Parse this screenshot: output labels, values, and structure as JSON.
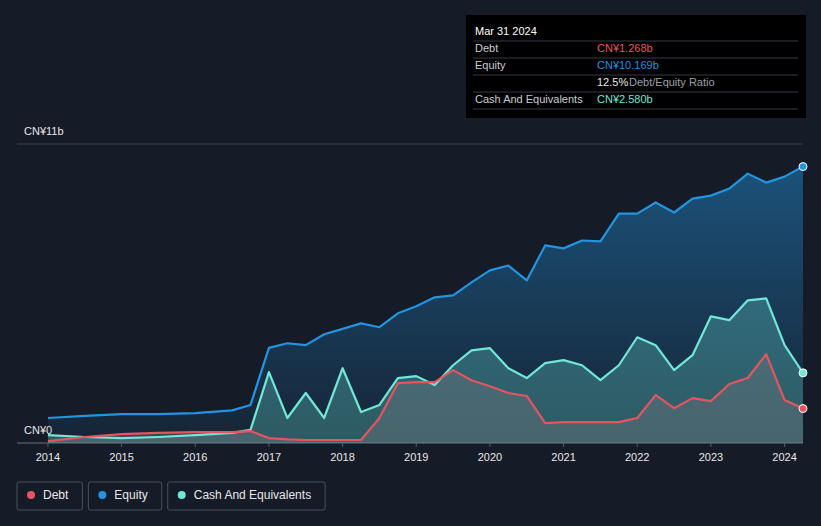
{
  "chart_data": {
    "type": "line",
    "x": [
      2014,
      2014.5,
      2015,
      2015.5,
      2016,
      2016.5,
      2016.75,
      2017,
      2017.25,
      2017.5,
      2017.75,
      2018,
      2018.25,
      2018.5,
      2018.75,
      2019,
      2019.25,
      2019.5,
      2019.75,
      2020,
      2020.25,
      2020.5,
      2020.75,
      2021,
      2021.25,
      2021.5,
      2021.75,
      2022,
      2022.25,
      2022.5,
      2022.75,
      2023,
      2023.25,
      2023.5,
      2023.75,
      2024,
      2024.25
    ],
    "series": [
      {
        "name": "Debt",
        "color": "#e5555f",
        "values": [
          0.07,
          0.22,
          0.33,
          0.37,
          0.4,
          0.4,
          0.44,
          0.18,
          0.13,
          0.11,
          0.11,
          0.11,
          0.11,
          0.92,
          2.2,
          2.24,
          2.24,
          2.68,
          2.31,
          2.09,
          1.84,
          1.73,
          0.73,
          0.77,
          0.77,
          0.77,
          0.77,
          0.92,
          1.76,
          1.28,
          1.65,
          1.54,
          2.17,
          2.39,
          3.27,
          1.58,
          1.268
        ]
      },
      {
        "name": "Equity",
        "color": "#2394df",
        "values": [
          0.92,
          1.0,
          1.06,
          1.06,
          1.1,
          1.2,
          1.4,
          3.5,
          3.67,
          3.6,
          4.0,
          4.2,
          4.4,
          4.26,
          4.77,
          5.03,
          5.36,
          5.43,
          5.91,
          6.35,
          6.53,
          5.98,
          7.27,
          7.16,
          7.45,
          7.42,
          8.44,
          8.44,
          8.85,
          8.48,
          8.99,
          9.1,
          9.36,
          9.91,
          9.58,
          9.8,
          10.169
        ]
      },
      {
        "name": "Cash And Equivalents",
        "color": "#71e7d6",
        "values": [
          0.29,
          0.22,
          0.18,
          0.22,
          0.29,
          0.37,
          0.48,
          2.61,
          0.92,
          1.84,
          0.92,
          2.75,
          1.14,
          1.4,
          2.39,
          2.46,
          2.13,
          2.86,
          3.41,
          3.49,
          2.75,
          2.39,
          2.94,
          3.05,
          2.86,
          2.31,
          2.86,
          3.89,
          3.6,
          2.68,
          3.23,
          4.66,
          4.52,
          5.25,
          5.32,
          3.6,
          2.58
        ]
      }
    ],
    "xlim": [
      2013.58,
      2024.25
    ],
    "xticks": [
      2014,
      2015,
      2016,
      2017,
      2018,
      2019,
      2020,
      2021,
      2022,
      2023,
      2024
    ],
    "ylim": [
      0,
      11
    ],
    "yticks": [
      {
        "value": 0,
        "label": "CN¥0"
      },
      {
        "value": 11,
        "label": "CN¥11b"
      }
    ],
    "grid": true,
    "legend": "bottom",
    "tooltip": {
      "title": "Mar 31 2024",
      "rows": [
        {
          "label": "Debt",
          "value": "CN¥1.268b",
          "color": "#e5555f"
        },
        {
          "label": "Equity",
          "value": "CN¥10.169b",
          "color": "#2394df"
        },
        {
          "value": "12.5%",
          "label": "Debt/Equity Ratio",
          "color": "#e8e8e8"
        },
        {
          "label": "Cash And Equivalents",
          "value": "CN¥2.580b",
          "color": "#71e7d6"
        }
      ]
    }
  }
}
